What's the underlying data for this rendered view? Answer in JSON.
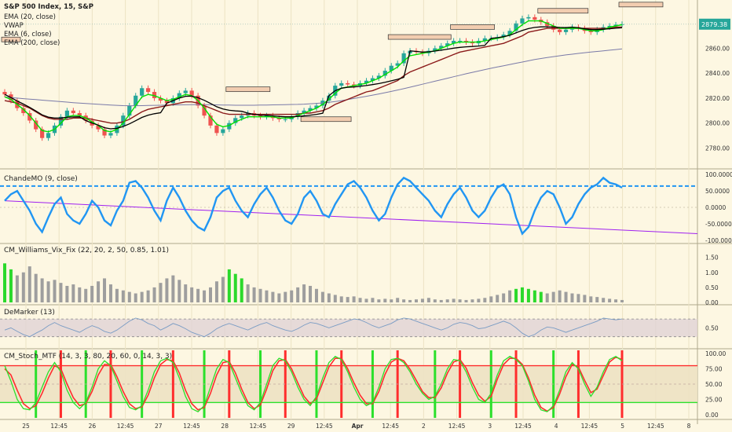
{
  "main": {
    "title": "S&P 500 Index, 15, S&P",
    "legend": [
      "EMA (20, close)",
      "VWAP",
      "EMA (6, close)",
      "EMA (200, close)"
    ],
    "last_price": "2879.38",
    "price_ticks": [
      "2880.00",
      "2860.00",
      "2840.00",
      "2820.00",
      "2800.00",
      "2780.00"
    ],
    "ylim": [
      2767,
      2895
    ]
  },
  "panels": {
    "cmo_title": "ChandeMO (9, close)",
    "cmo_ticks": [
      "100.0000",
      "50.0000",
      "0.0000",
      "-50.0000",
      "-100.0000"
    ],
    "vix_title": "CM_Williams_Vix_Fix (22, 20, 2, 50, 0.85, 1.01)",
    "vix_ticks": [
      "1.50",
      "1.00",
      "0.50",
      "0.00"
    ],
    "dem_title": "DeMarker (13)",
    "dem_ticks": [
      "0.50"
    ],
    "stoch_title": "CM_Stoch_MTF (14, 3, 3, 80, 20, 60, 0, 14, 3, 3)",
    "stoch_ticks": [
      "100.00",
      "75.00",
      "50.00",
      "25.00",
      "0.00"
    ]
  },
  "time_axis": [
    "25",
    "12:45",
    "26",
    "12:45",
    "27",
    "12:45",
    "28",
    "12:45",
    "29",
    "12:45",
    "Apr",
    "12:45",
    "2",
    "12:45",
    "3",
    "12:45",
    "4",
    "12:45",
    "5",
    "12:45",
    "8"
  ],
  "colors": {
    "background": "#fdf7e2",
    "candle_up": "#26a69a",
    "candle_down": "#ef5350",
    "ema6": "#00e000",
    "ema20": "#8b1a1a",
    "vwap": "#000000",
    "ema200": "#7a7aa8",
    "cmo_line": "#2196f3",
    "cmo_trend": "#a020f0",
    "vix_gray": "#9e9e9e",
    "vix_green": "#2bd92b",
    "stoch_red": "#ff2d2d",
    "stoch_green": "#2be02b",
    "price_badge": "#26a69a"
  },
  "chart_data": [
    {
      "type": "line",
      "name": "price",
      "ylim": [
        2767,
        2895
      ],
      "close": [
        2823,
        2818,
        2812,
        2808,
        2802,
        2795,
        2788,
        2792,
        2798,
        2805,
        2810,
        2808,
        2806,
        2802,
        2798,
        2795,
        2790,
        2792,
        2798,
        2806,
        2814,
        2822,
        2828,
        2825,
        2820,
        2818,
        2816,
        2820,
        2824,
        2826,
        2822,
        2814,
        2806,
        2798,
        2792,
        2795,
        2800,
        2804,
        2806,
        2808,
        2806,
        2805,
        2806,
        2804,
        2803,
        2803,
        2805,
        2808,
        2810,
        2812,
        2814,
        2818,
        2822,
        2830,
        2832,
        2831,
        2830,
        2832,
        2834,
        2836,
        2838,
        2842,
        2846,
        2848,
        2856,
        2858,
        2857,
        2856,
        2858,
        2860,
        2862,
        2864,
        2866,
        2866,
        2865,
        2864,
        2866,
        2868,
        2868,
        2869,
        2871,
        2874,
        2880,
        2884,
        2885,
        2883,
        2881,
        2878,
        2875,
        2873,
        2875,
        2877,
        2876,
        2874,
        2873,
        2875,
        2877,
        2878,
        2879,
        2879.4
      ],
      "ema6": [
        2821,
        2819,
        2815,
        2811,
        2806,
        2800,
        2794,
        2793,
        2795,
        2800,
        2805,
        2806,
        2806,
        2804,
        2801,
        2798,
        2794,
        2793,
        2795,
        2800,
        2807,
        2814,
        2821,
        2823,
        2822,
        2820,
        2818,
        2819,
        2821,
        2823,
        2822,
        2818,
        2812,
        2805,
        2799,
        2797,
        2798,
        2801,
        2803,
        2805,
        2805,
        2805,
        2805,
        2805,
        2804,
        2804,
        2804,
        2806,
        2808,
        2810,
        2812,
        2815,
        2819,
        2824,
        2828,
        2829,
        2830,
        2831,
        2832,
        2834,
        2836,
        2839,
        2842,
        2845,
        2850,
        2854,
        2855,
        2856,
        2857,
        2858,
        2860,
        2862,
        2864,
        2865,
        2865,
        2865,
        2865,
        2866,
        2867,
        2868,
        2869,
        2871,
        2875,
        2879,
        2882,
        2882,
        2882,
        2880,
        2878,
        2876,
        2876,
        2876,
        2876,
        2875,
        2874,
        2874,
        2875,
        2877,
        2878,
        2879
      ],
      "ema20": [
        2818,
        2817,
        2816,
        2814,
        2812,
        2809,
        2806,
        2804,
        2803,
        2803,
        2803,
        2804,
        2804,
        2804,
        2803,
        2802,
        2801,
        2800,
        2800,
        2801,
        2803,
        2806,
        2809,
        2811,
        2812,
        2813,
        2814,
        2815,
        2816,
        2817,
        2817,
        2816,
        2814,
        2812,
        2810,
        2808,
        2807,
        2807,
        2807,
        2807,
        2807,
        2807,
        2807,
        2807,
        2807,
        2807,
        2807,
        2807,
        2808,
        2808,
        2809,
        2810,
        2812,
        2815,
        2817,
        2819,
        2821,
        2823,
        2825,
        2826,
        2828,
        2830,
        2832,
        2834,
        2838,
        2841,
        2843,
        2845,
        2847,
        2849,
        2851,
        2853,
        2855,
        2857,
        2858,
        2859,
        2860,
        2861,
        2862,
        2863,
        2864,
        2866,
        2868,
        2870,
        2873,
        2874,
        2875,
        2876,
        2876,
        2876,
        2876,
        2876,
        2876,
        2876,
        2876,
        2876,
        2876,
        2876,
        2877,
        2877
      ],
      "ema200": [
        2821,
        2820.5,
        2820,
        2819.6,
        2819.2,
        2818.8,
        2818.4,
        2818,
        2817.6,
        2817.2,
        2816.8,
        2816.4,
        2816,
        2815.7,
        2815.4,
        2815.1,
        2814.8,
        2814.5,
        2814.2,
        2814,
        2813.9,
        2813.9,
        2814,
        2814.1,
        2814.2,
        2814.3,
        2814.4,
        2814.5,
        2814.6,
        2814.7,
        2814.8,
        2814.8,
        2814.8,
        2814.7,
        2814.6,
        2814.5,
        2814.4,
        2814.3,
        2814.3,
        2814.3,
        2814.3,
        2814.4,
        2814.5,
        2814.6,
        2814.7,
        2814.8,
        2814.9,
        2815,
        2815.2,
        2815.5,
        2815.8,
        2816.2,
        2816.7,
        2817.3,
        2818,
        2818.8,
        2819.7,
        2820.6,
        2821.5,
        2822.4,
        2823.4,
        2824.4,
        2825.4,
        2826.5,
        2827.6,
        2828.8,
        2830,
        2831.2,
        2832.4,
        2833.6,
        2834.8,
        2836,
        2837.2,
        2838.4,
        2839.6,
        2840.7,
        2841.8,
        2842.9,
        2844,
        2845,
        2846,
        2847,
        2848,
        2849,
        2850,
        2851,
        2851.8,
        2852.6,
        2853.3,
        2854,
        2854.7,
        2855.3,
        2855.9,
        2856.5,
        2857,
        2857.5,
        2858,
        2858.5,
        2859,
        2859.5
      ]
    },
    {
      "type": "line",
      "name": "ChandeMO",
      "ylim": [
        -110,
        110
      ],
      "values": [
        20,
        40,
        50,
        20,
        -10,
        -50,
        -75,
        -30,
        10,
        30,
        -20,
        -40,
        -50,
        -20,
        20,
        0,
        -40,
        -55,
        -10,
        20,
        75,
        80,
        60,
        30,
        -10,
        -40,
        20,
        60,
        30,
        -10,
        -40,
        -60,
        -70,
        -30,
        30,
        50,
        60,
        20,
        -10,
        -30,
        10,
        40,
        60,
        30,
        -10,
        -40,
        -50,
        -20,
        30,
        50,
        20,
        -20,
        -30,
        10,
        40,
        70,
        80,
        60,
        30,
        -10,
        -40,
        -20,
        30,
        70,
        90,
        80,
        60,
        40,
        20,
        -10,
        -30,
        10,
        40,
        60,
        30,
        -10,
        -30,
        -10,
        30,
        60,
        70,
        40,
        -30,
        -80,
        -60,
        -10,
        30,
        50,
        40,
        0,
        -50,
        -30,
        10,
        40,
        60,
        70,
        90,
        75,
        70,
        60
      ],
      "dashed_level": 65,
      "trend_line": [
        [
          0,
          20
        ],
        [
          99,
          -70
        ]
      ]
    },
    {
      "type": "bar",
      "name": "CM_Williams_Vix_Fix",
      "ylim": [
        0,
        1.7
      ],
      "values": [
        1.3,
        1.1,
        0.9,
        1.0,
        1.2,
        0.95,
        0.8,
        0.7,
        0.75,
        0.65,
        0.55,
        0.6,
        0.5,
        0.45,
        0.55,
        0.7,
        0.8,
        0.6,
        0.45,
        0.4,
        0.35,
        0.3,
        0.35,
        0.4,
        0.5,
        0.65,
        0.8,
        0.9,
        0.75,
        0.6,
        0.5,
        0.45,
        0.4,
        0.5,
        0.7,
        0.85,
        1.1,
        0.95,
        0.8,
        0.6,
        0.5,
        0.45,
        0.4,
        0.35,
        0.3,
        0.35,
        0.4,
        0.5,
        0.6,
        0.55,
        0.45,
        0.35,
        0.3,
        0.25,
        0.2,
        0.18,
        0.2,
        0.15,
        0.12,
        0.15,
        0.1,
        0.12,
        0.1,
        0.15,
        0.1,
        0.08,
        0.1,
        0.12,
        0.15,
        0.1,
        0.08,
        0.1,
        0.12,
        0.1,
        0.08,
        0.1,
        0.12,
        0.15,
        0.2,
        0.25,
        0.3,
        0.4,
        0.45,
        0.5,
        0.45,
        0.4,
        0.35,
        0.3,
        0.35,
        0.4,
        0.35,
        0.3,
        0.28,
        0.25,
        0.2,
        0.18,
        0.15,
        0.12,
        0.1,
        0.08
      ],
      "green_indices": [
        0,
        1,
        36,
        37,
        38,
        82,
        83,
        84,
        85,
        86
      ]
    },
    {
      "type": "line",
      "name": "DeMarker",
      "ylim": [
        0.1,
        0.95
      ],
      "values": [
        0.45,
        0.5,
        0.42,
        0.35,
        0.3,
        0.38,
        0.45,
        0.55,
        0.62,
        0.55,
        0.5,
        0.45,
        0.4,
        0.48,
        0.55,
        0.5,
        0.42,
        0.38,
        0.45,
        0.55,
        0.65,
        0.72,
        0.68,
        0.6,
        0.55,
        0.45,
        0.52,
        0.6,
        0.55,
        0.48,
        0.4,
        0.35,
        0.3,
        0.38,
        0.48,
        0.55,
        0.6,
        0.55,
        0.5,
        0.45,
        0.52,
        0.58,
        0.62,
        0.55,
        0.5,
        0.45,
        0.42,
        0.48,
        0.56,
        0.62,
        0.6,
        0.55,
        0.5,
        0.55,
        0.6,
        0.65,
        0.7,
        0.68,
        0.62,
        0.55,
        0.5,
        0.55,
        0.6,
        0.68,
        0.72,
        0.7,
        0.65,
        0.6,
        0.55,
        0.5,
        0.45,
        0.5,
        0.58,
        0.62,
        0.6,
        0.55,
        0.48,
        0.5,
        0.55,
        0.6,
        0.65,
        0.6,
        0.5,
        0.38,
        0.3,
        0.35,
        0.45,
        0.52,
        0.5,
        0.45,
        0.4,
        0.45,
        0.5,
        0.55,
        0.6,
        0.65,
        0.72,
        0.7,
        0.68,
        0.7
      ],
      "band": [
        0.3,
        0.7
      ]
    },
    {
      "type": "line",
      "name": "CM_Stoch_MTF",
      "ylim": [
        -5,
        105
      ],
      "k": [
        80,
        55,
        25,
        10,
        8,
        20,
        45,
        70,
        85,
        70,
        40,
        20,
        10,
        20,
        45,
        75,
        88,
        80,
        55,
        30,
        12,
        8,
        15,
        40,
        70,
        88,
        92,
        85,
        60,
        30,
        10,
        5,
        15,
        45,
        75,
        90,
        85,
        60,
        35,
        15,
        8,
        20,
        50,
        80,
        92,
        88,
        70,
        45,
        25,
        15,
        30,
        60,
        85,
        95,
        90,
        70,
        45,
        25,
        15,
        20,
        45,
        75,
        90,
        92,
        85,
        70,
        50,
        35,
        25,
        30,
        50,
        75,
        90,
        88,
        70,
        45,
        25,
        20,
        35,
        65,
        88,
        95,
        90,
        80,
        55,
        25,
        8,
        5,
        15,
        40,
        70,
        85,
        75,
        50,
        30,
        45,
        70,
        90,
        95,
        88
      ],
      "d": [
        75,
        65,
        40,
        18,
        10,
        15,
        35,
        60,
        80,
        75,
        50,
        28,
        15,
        18,
        38,
        65,
        82,
        82,
        62,
        38,
        18,
        10,
        13,
        32,
        60,
        82,
        90,
        88,
        68,
        40,
        18,
        8,
        12,
        35,
        65,
        85,
        87,
        68,
        42,
        20,
        10,
        16,
        42,
        72,
        88,
        90,
        75,
        52,
        30,
        18,
        26,
        52,
        78,
        92,
        92,
        75,
        52,
        32,
        18,
        18,
        38,
        66,
        86,
        92,
        88,
        74,
        56,
        38,
        28,
        28,
        44,
        68,
        86,
        90,
        76,
        52,
        32,
        22,
        30,
        58,
        82,
        92,
        92,
        82,
        60,
        32,
        12,
        6,
        12,
        34,
        62,
        82,
        78,
        56,
        36,
        42,
        64,
        86,
        94,
        90
      ],
      "upper": 80,
      "lower": 20
    }
  ]
}
